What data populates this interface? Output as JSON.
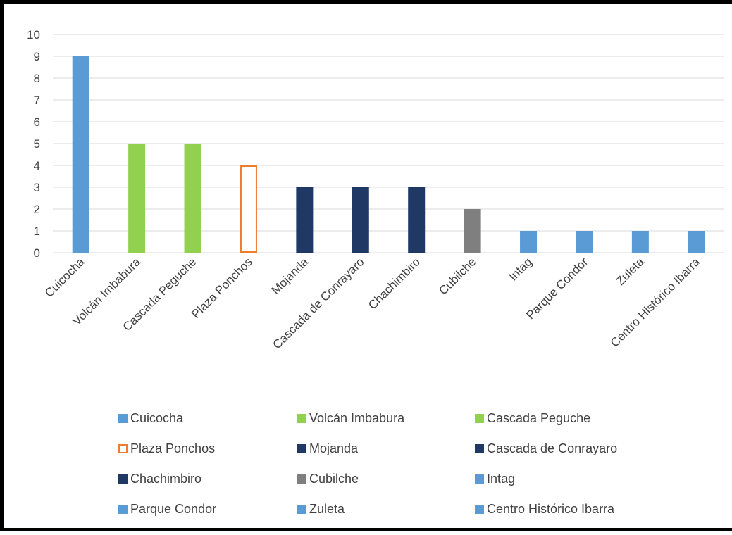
{
  "chart_data": {
    "type": "bar",
    "title": "",
    "xlabel": "",
    "ylabel": "",
    "ylim": [
      0,
      10
    ],
    "yticks": [
      0,
      1,
      2,
      3,
      4,
      5,
      6,
      7,
      8,
      9,
      10
    ],
    "grid": true,
    "legend_position": "bottom",
    "categories": [
      "Cuicocha",
      "Volcán Imbabura",
      "Cascada Peguche",
      "Plaza Ponchos",
      "Mojanda",
      "Cascada de Conrayaro",
      "Chachimbiro",
      "Cubilche",
      "Intag",
      "Parque Condor",
      "Zuleta",
      "Centro Histórico Ibarra"
    ],
    "values": [
      9,
      5,
      5,
      4,
      3,
      3,
      3,
      2,
      1,
      1,
      1,
      1
    ],
    "bar_styles": [
      {
        "fill": "#5b9bd5",
        "stroke": "none"
      },
      {
        "fill": "#92d050",
        "stroke": "none"
      },
      {
        "fill": "#92d050",
        "stroke": "none"
      },
      {
        "fill": "#ffffff",
        "stroke": "#ed7d31"
      },
      {
        "fill": "#1f3864",
        "stroke": "none"
      },
      {
        "fill": "#1f3864",
        "stroke": "none"
      },
      {
        "fill": "#1f3864",
        "stroke": "none"
      },
      {
        "fill": "#7f7f7f",
        "stroke": "none"
      },
      {
        "fill": "#5b9bd5",
        "stroke": "none"
      },
      {
        "fill": "#5b9bd5",
        "stroke": "none"
      },
      {
        "fill": "#5b9bd5",
        "stroke": "none"
      },
      {
        "fill": "#5b9bd5",
        "stroke": "none"
      }
    ],
    "colors": {
      "gridline": "#d9d9d9",
      "axis_text": "#404040",
      "frame": "#000000"
    }
  }
}
